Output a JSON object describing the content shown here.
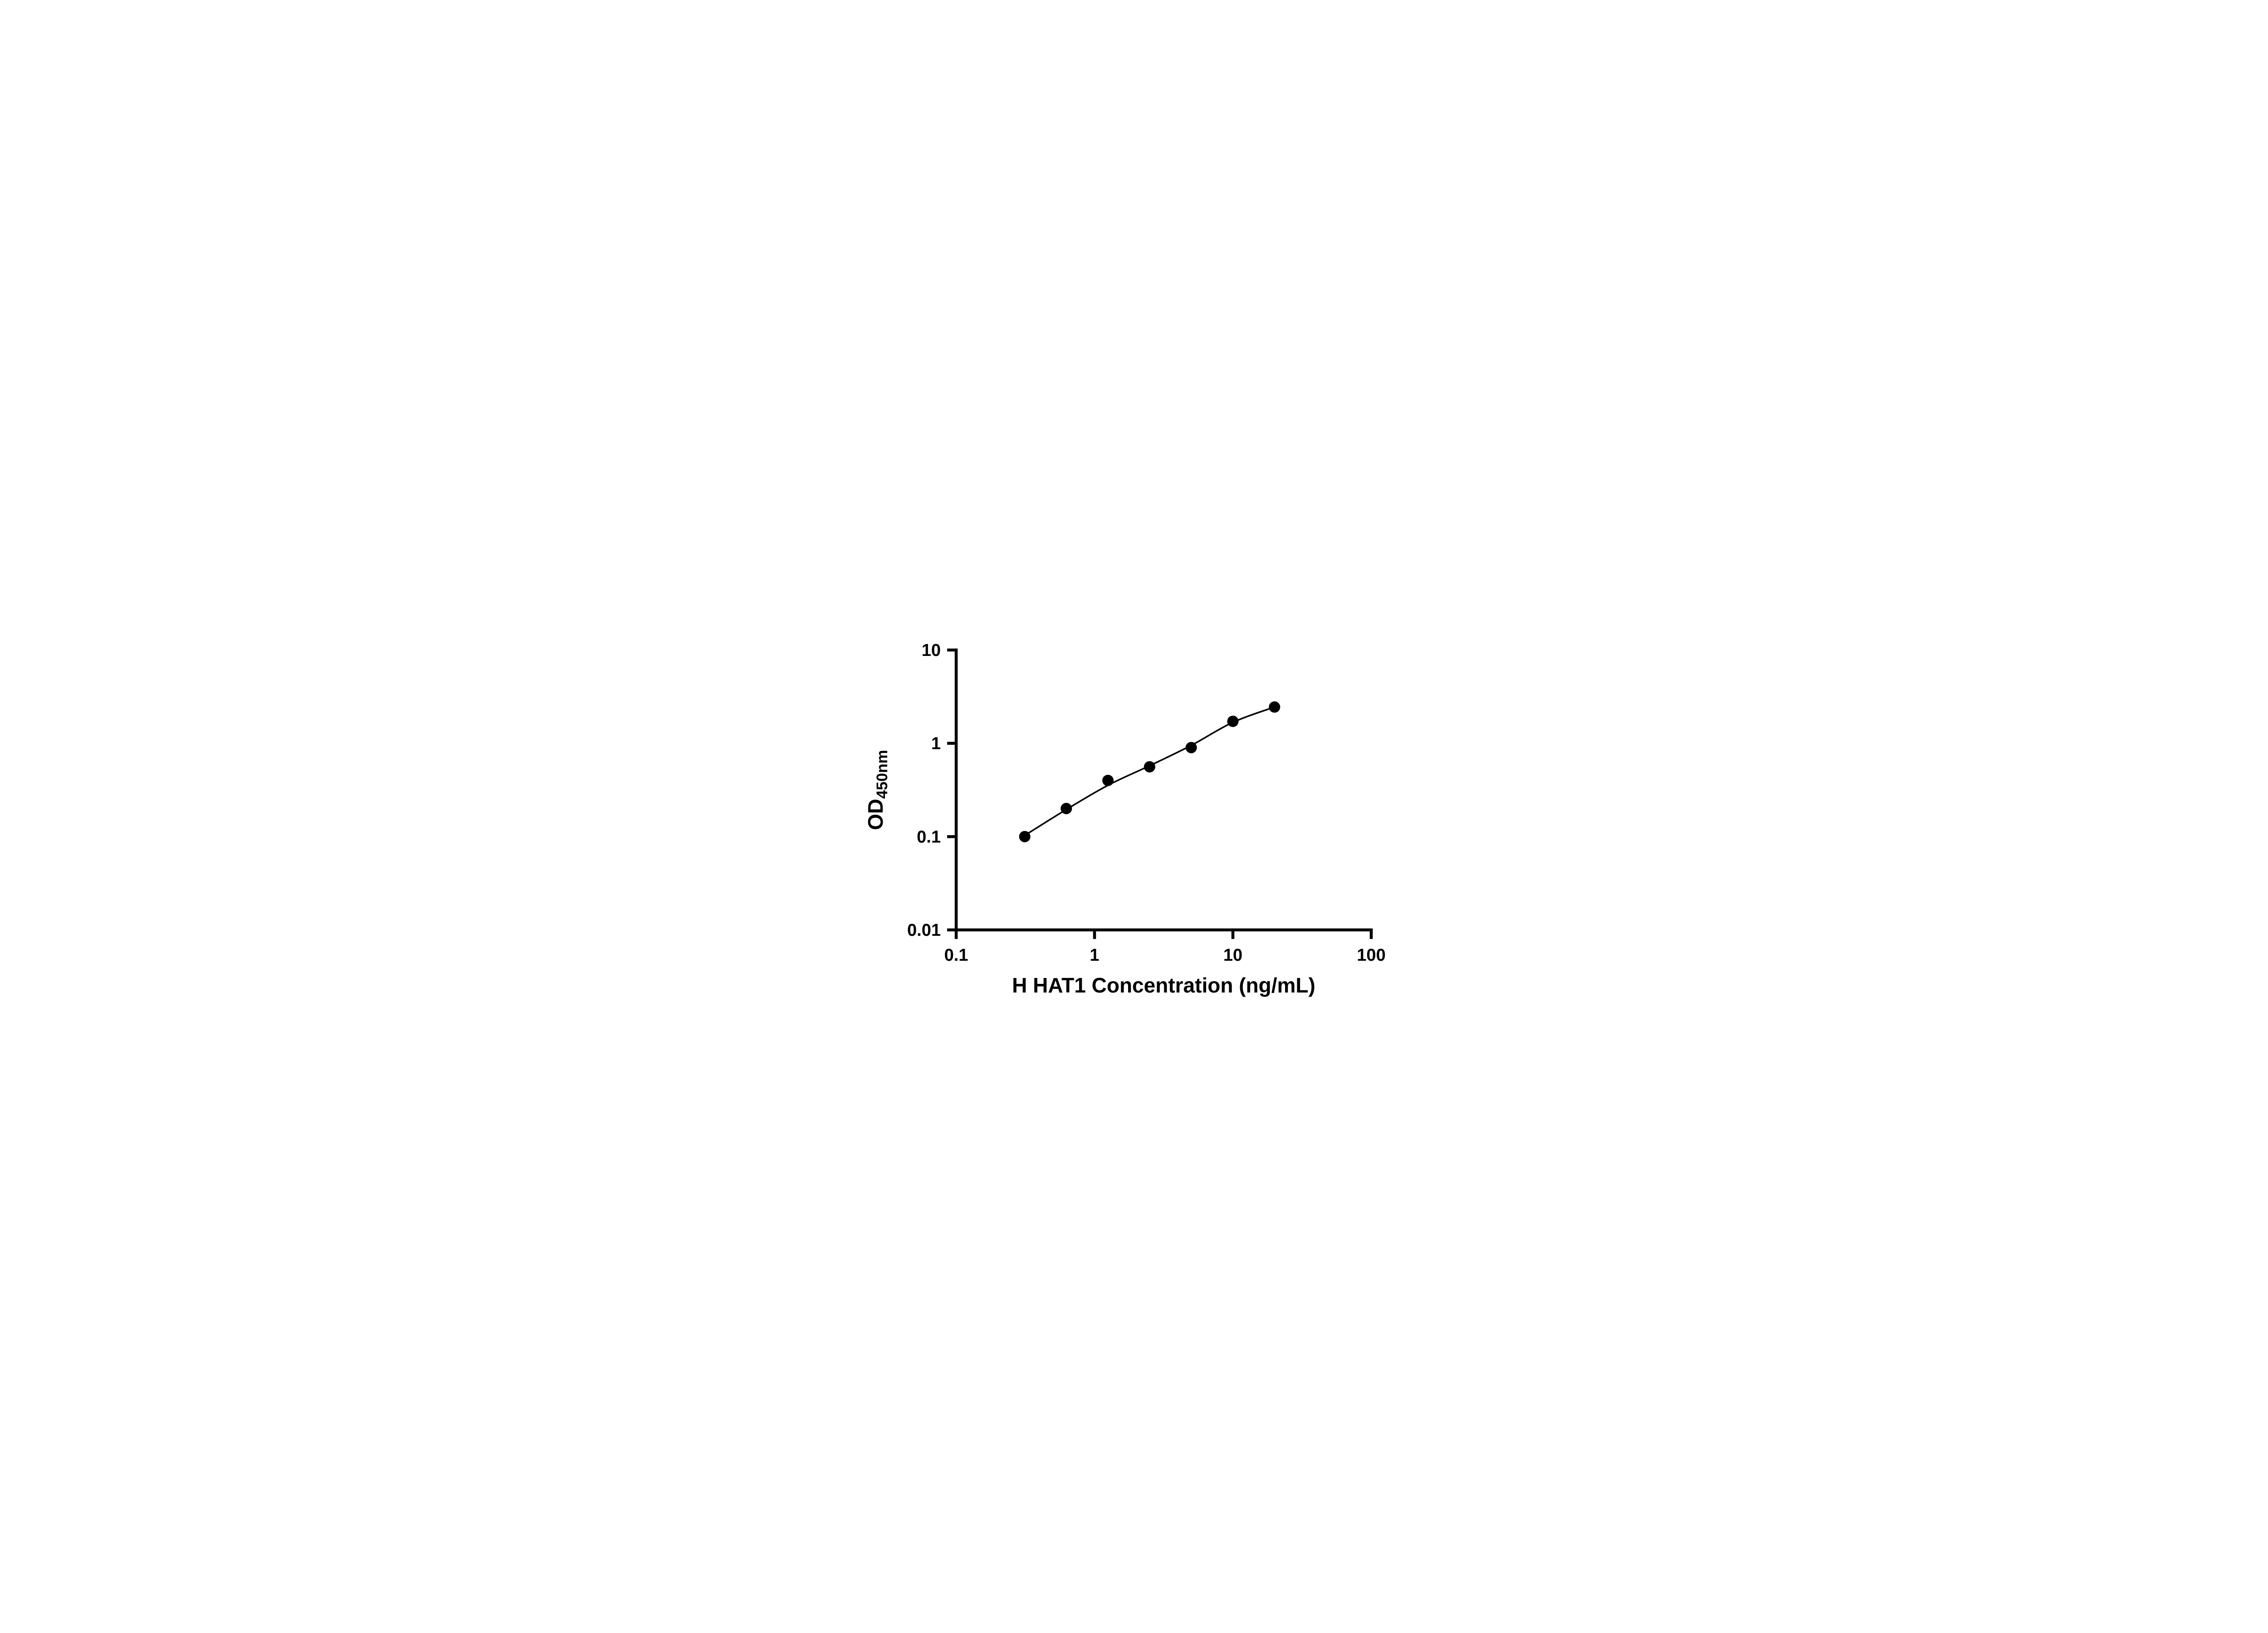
{
  "chart_data": {
    "type": "scatter",
    "title": "",
    "xlabel": "H HAT1 Concentration (ng/mL)",
    "ylabel_main": "OD",
    "ylabel_sub": "450nm",
    "x_scale": "log",
    "y_scale": "log",
    "xlim": [
      0.1,
      100
    ],
    "ylim": [
      0.01,
      10
    ],
    "x_ticks": [
      0.1,
      1,
      10,
      100
    ],
    "x_tick_labels": [
      "0.1",
      "1",
      "10",
      "100"
    ],
    "y_ticks": [
      0.01,
      0.1,
      1,
      10
    ],
    "y_tick_labels": [
      "0.01",
      "0.1",
      "1",
      "10"
    ],
    "grid": false,
    "legend": false,
    "marker_color": "#000000",
    "line_color": "#000000",
    "points": [
      {
        "x": 0.313,
        "y": 0.1
      },
      {
        "x": 0.625,
        "y": 0.2
      },
      {
        "x": 1.25,
        "y": 0.4
      },
      {
        "x": 2.5,
        "y": 0.56
      },
      {
        "x": 5,
        "y": 0.9
      },
      {
        "x": 10,
        "y": 1.72
      },
      {
        "x": 20,
        "y": 2.45
      }
    ],
    "fit_curve": [
      {
        "x": 0.313,
        "y": 0.103
      },
      {
        "x": 0.625,
        "y": 0.195
      },
      {
        "x": 1.25,
        "y": 0.355
      },
      {
        "x": 2.5,
        "y": 0.575
      },
      {
        "x": 5,
        "y": 0.95
      },
      {
        "x": 10,
        "y": 1.68
      },
      {
        "x": 20,
        "y": 2.45
      }
    ]
  }
}
